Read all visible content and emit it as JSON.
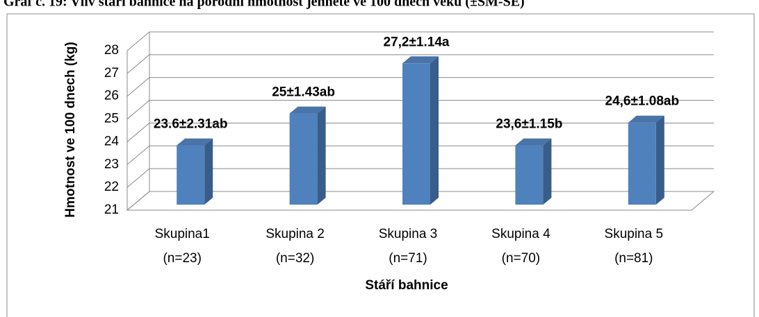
{
  "chart_data": {
    "type": "bar3d",
    "title": "Graf č. 19: Vliv stáří bahnice na porodní hmotnost jehněte ve 100 dnech věku (±SM-SE)",
    "categories": [
      [
        "Skupina1",
        "(n=23)"
      ],
      [
        "Skupina 2",
        "(n=32)"
      ],
      [
        "Skupina 3",
        "(n=71)"
      ],
      [
        "Skupina 4",
        "(n=70)"
      ],
      [
        "Skupina 5",
        "(n=81)"
      ]
    ],
    "values": [
      23.6,
      25,
      27.2,
      23.6,
      24.6
    ],
    "value_labels": [
      "23.6±2.31ab",
      "25±1.43ab",
      "27,2±1.14a",
      "23,6±1.15b",
      "24,6±1.08ab"
    ],
    "color": "#4f81bd",
    "ylim": [
      21,
      28
    ],
    "yticks": [
      21,
      22,
      23,
      24,
      25,
      26,
      27,
      28
    ],
    "ylabel": "Hmotnost ve 100 dnech (kg)",
    "xlabel": "Stáří bahnice",
    "grid": true
  }
}
